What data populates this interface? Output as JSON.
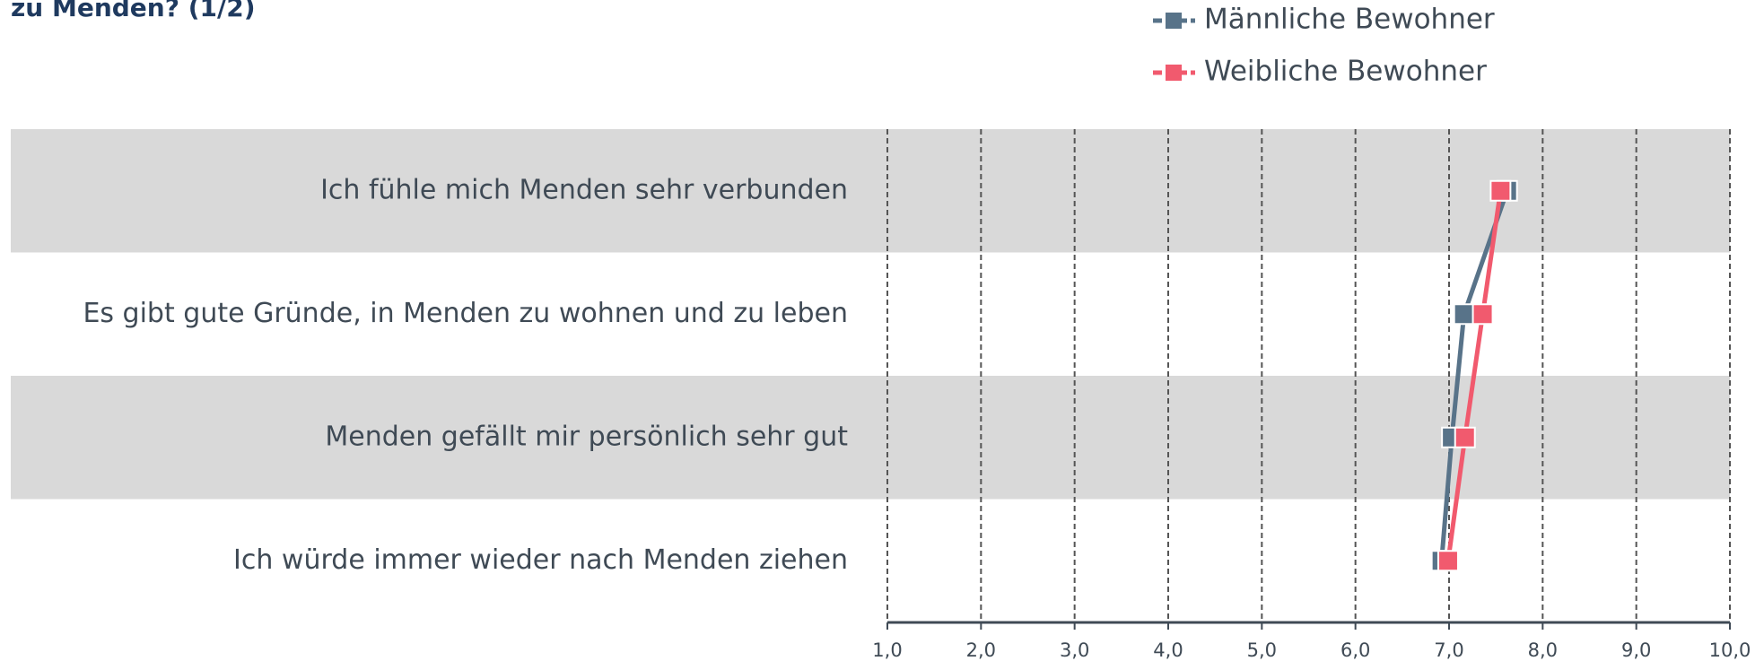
{
  "chart_data": {
    "type": "line",
    "title": "zu Menden? (1/2)",
    "categories": [
      "Ich fühle mich Menden sehr verbunden",
      "Es gibt gute Gründe, in Menden zu wohnen und zu leben",
      "Menden gefällt mir persönlich sehr gut",
      "Ich würde immer wieder nach Menden ziehen"
    ],
    "series": [
      {
        "name": "Männliche Bewohner",
        "color": "#587389",
        "values": [
          7.62,
          7.16,
          7.03,
          6.92
        ]
      },
      {
        "name": "Weibliche Bewohner",
        "color": "#f15a6e",
        "values": [
          7.55,
          7.36,
          7.17,
          6.99
        ]
      }
    ],
    "xlim": [
      1,
      10
    ],
    "xticks": [
      {
        "value": 1,
        "label": "1,0"
      },
      {
        "value": 2,
        "label": "2,0"
      },
      {
        "value": 3,
        "label": "3,0"
      },
      {
        "value": 4,
        "label": "4,0"
      },
      {
        "value": 5,
        "label": "5,0"
      },
      {
        "value": 6,
        "label": "6,0"
      },
      {
        "value": 7,
        "label": "7,0"
      },
      {
        "value": 8,
        "label": "8,0"
      },
      {
        "value": 9,
        "label": "9,0"
      },
      {
        "value": 10,
        "label": "10,0"
      }
    ],
    "grid": true
  }
}
